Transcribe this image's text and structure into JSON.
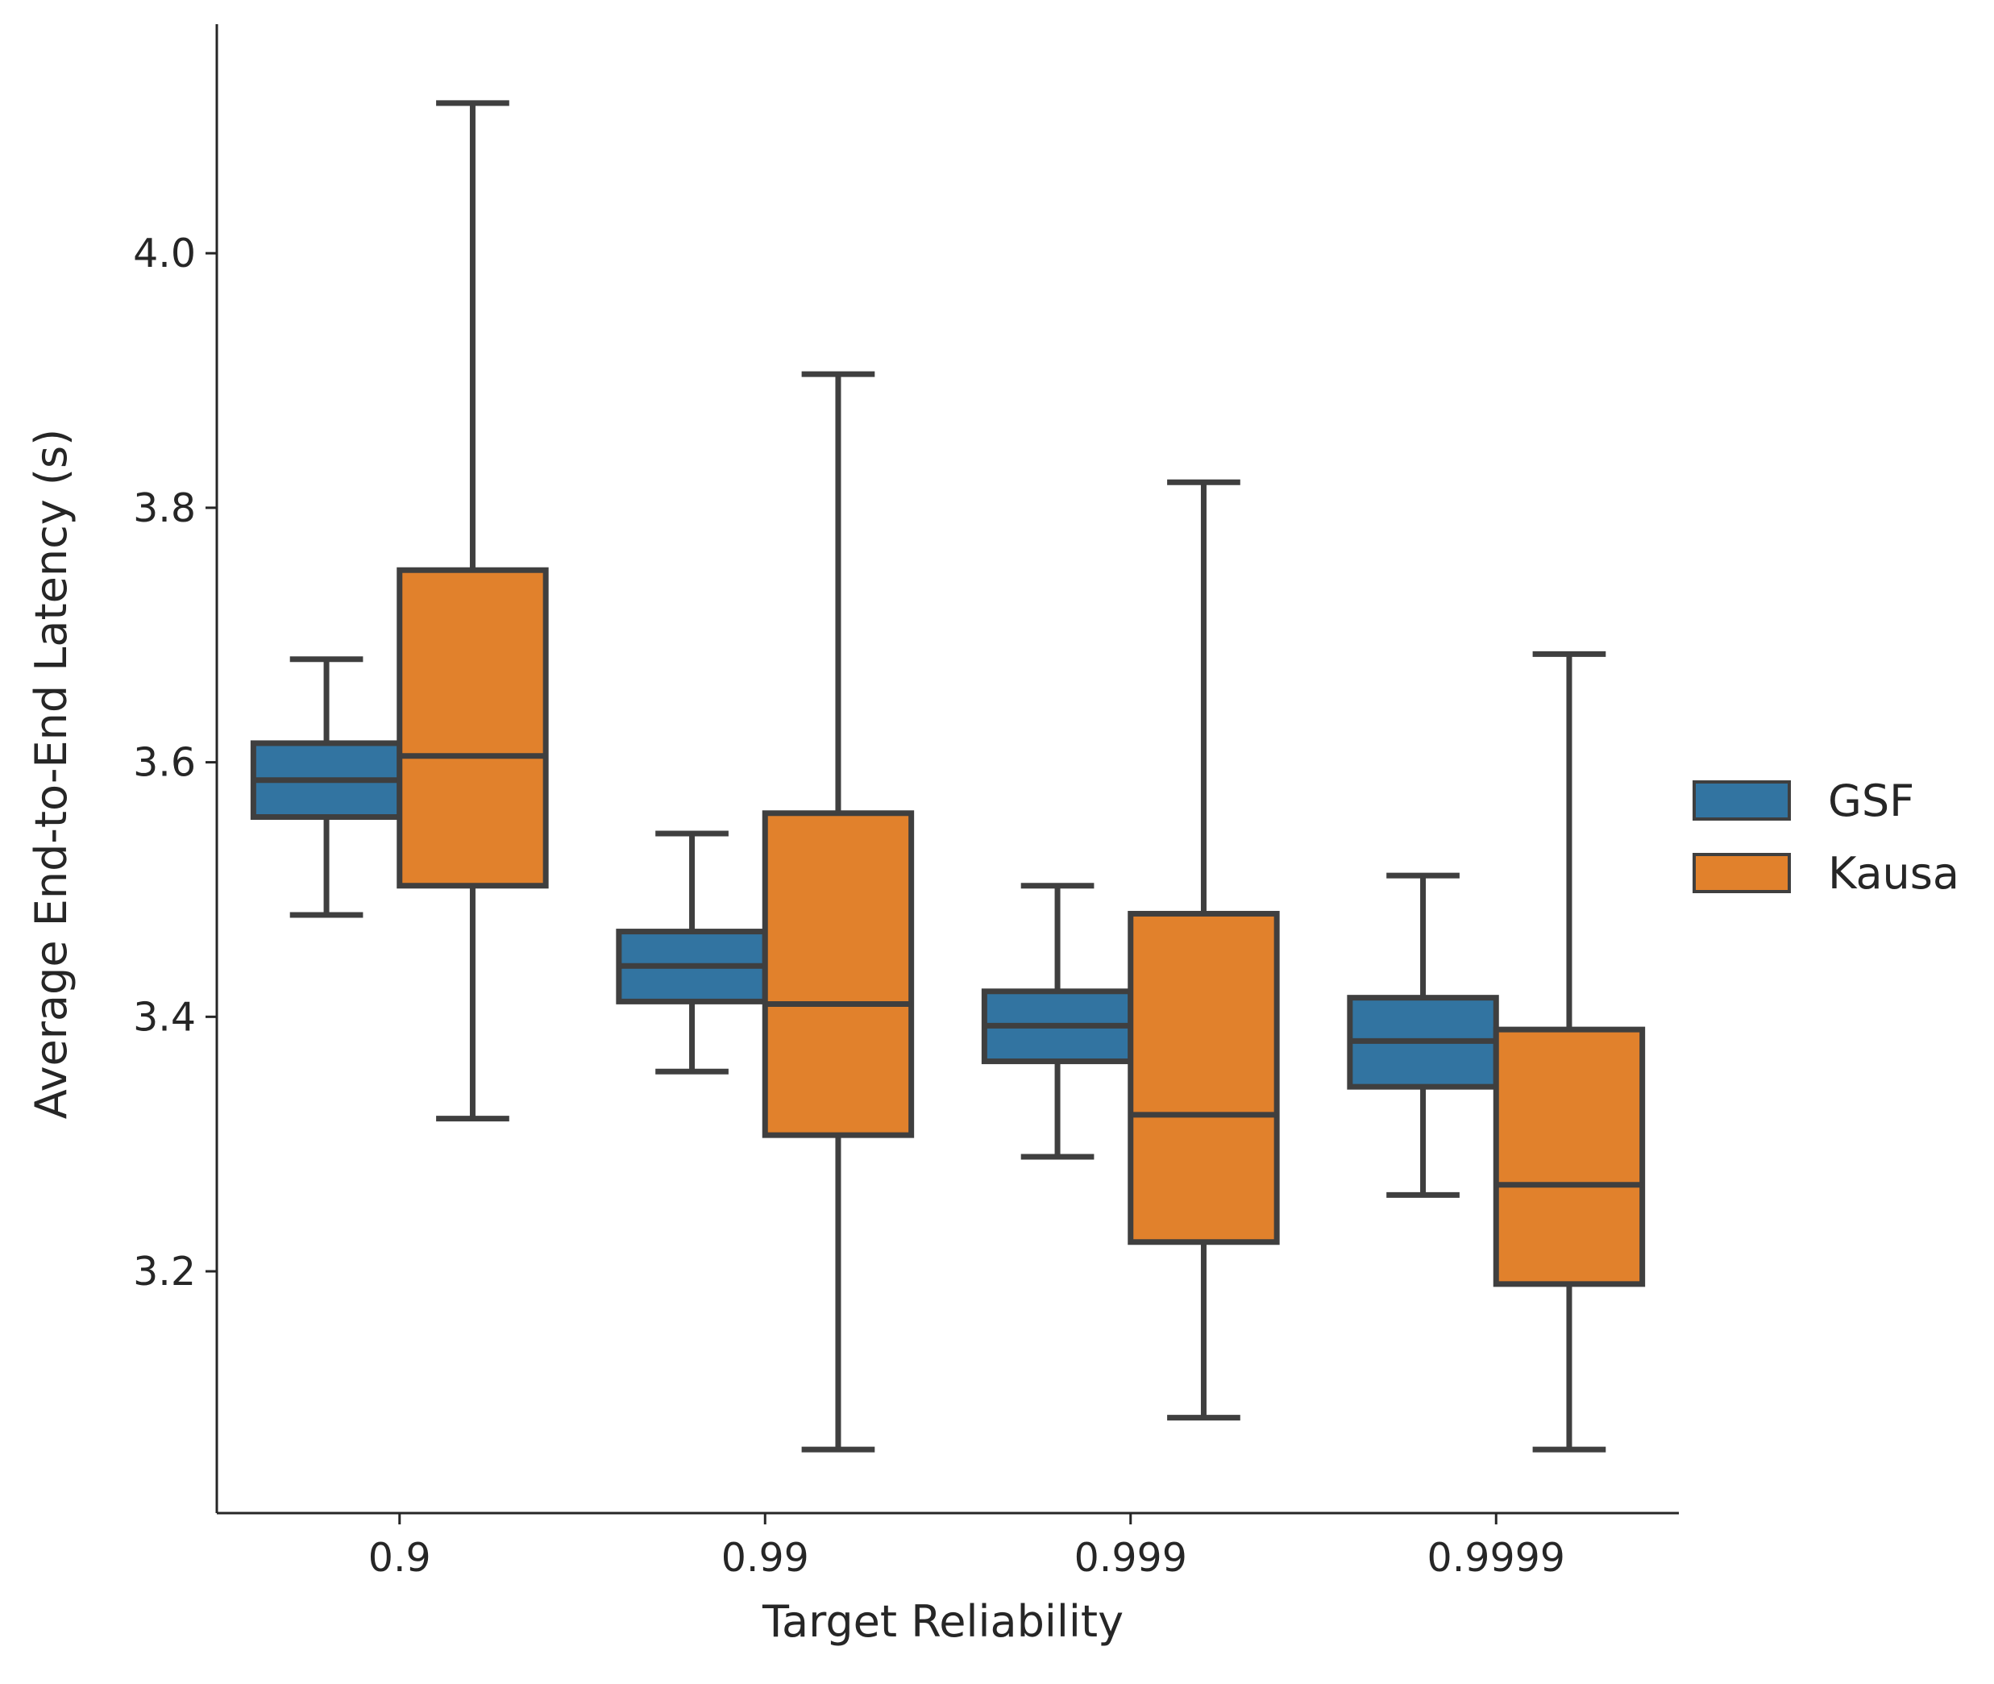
{
  "chart_data": {
    "type": "boxplot",
    "title": "",
    "xlabel": "Target Reliability",
    "ylabel": "Average End-to-End Latency (s)",
    "categories": [
      "0.9",
      "0.99",
      "0.999",
      "0.9999"
    ],
    "ylim": [
      3.01,
      4.18
    ],
    "yticks": [
      3.2,
      3.4,
      3.6,
      3.8,
      4.0
    ],
    "ytick_labels": [
      "3.2",
      "3.4",
      "3.6",
      "3.8",
      "4.0"
    ],
    "legend_position": "center-right, outside plot",
    "series": [
      {
        "name": "GSF",
        "color": "#3274a1",
        "boxes": [
          {
            "whislo": 3.48,
            "q1": 3.557,
            "median": 3.586,
            "q3": 3.615,
            "whishi": 3.681
          },
          {
            "whislo": 3.357,
            "q1": 3.412,
            "median": 3.44,
            "q3": 3.467,
            "whishi": 3.544
          },
          {
            "whislo": 3.29,
            "q1": 3.365,
            "median": 3.393,
            "q3": 3.42,
            "whishi": 3.503
          },
          {
            "whislo": 3.26,
            "q1": 3.345,
            "median": 3.381,
            "q3": 3.415,
            "whishi": 3.511
          }
        ]
      },
      {
        "name": "Kausa",
        "color": "#e1812c",
        "boxes": [
          {
            "whislo": 3.32,
            "q1": 3.503,
            "median": 3.605,
            "q3": 3.751,
            "whishi": 4.118
          },
          {
            "whislo": 3.06,
            "q1": 3.307,
            "median": 3.41,
            "q3": 3.56,
            "whishi": 3.905
          },
          {
            "whislo": 3.085,
            "q1": 3.223,
            "median": 3.323,
            "q3": 3.481,
            "whishi": 3.82
          },
          {
            "whislo": 3.06,
            "q1": 3.19,
            "median": 3.268,
            "q3": 3.39,
            "whishi": 3.685
          }
        ]
      }
    ]
  }
}
